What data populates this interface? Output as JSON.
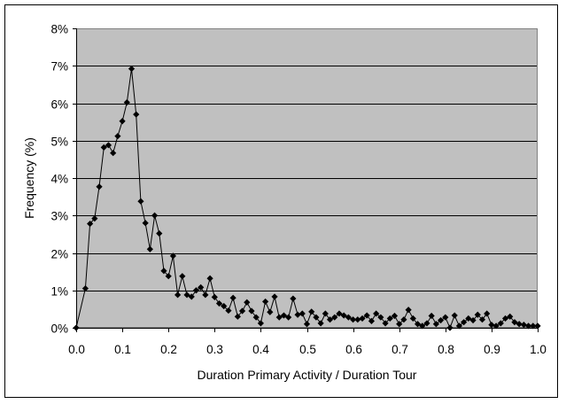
{
  "chart_data": {
    "type": "line",
    "title": "",
    "xlabel": "Duration Primary Activity / Duration Tour",
    "ylabel": "Frequency (%)",
    "xlim": [
      0,
      1
    ],
    "ylim": [
      0,
      8
    ],
    "x_ticks": [
      "0.0",
      "0.1",
      "0.2",
      "0.3",
      "0.4",
      "0.5",
      "0.6",
      "0.7",
      "0.8",
      "0.9",
      "1.0"
    ],
    "y_ticks": [
      "0%",
      "1%",
      "2%",
      "3%",
      "4%",
      "5%",
      "6%",
      "7%",
      "8%"
    ],
    "grid": "horizontal",
    "legend": "none",
    "marker": "diamond",
    "colors": {
      "plot_background": "#c0c0c0",
      "line": "#000000",
      "gridline": "#000000"
    },
    "series": [
      {
        "x": [
          0.0,
          0.02,
          0.03,
          0.04,
          0.05,
          0.06,
          0.07,
          0.08,
          0.09,
          0.1,
          0.11,
          0.12,
          0.13,
          0.14,
          0.15,
          0.16,
          0.17,
          0.18,
          0.19,
          0.2,
          0.21,
          0.22,
          0.23,
          0.24,
          0.25,
          0.26,
          0.27,
          0.28,
          0.29,
          0.3,
          0.31,
          0.32,
          0.33,
          0.34,
          0.35,
          0.36,
          0.37,
          0.38,
          0.39,
          0.4,
          0.41,
          0.42,
          0.43,
          0.44,
          0.45,
          0.46,
          0.47,
          0.48,
          0.49,
          0.5,
          0.51,
          0.52,
          0.53,
          0.54,
          0.55,
          0.56,
          0.57,
          0.58,
          0.59,
          0.6,
          0.61,
          0.62,
          0.63,
          0.64,
          0.65,
          0.66,
          0.67,
          0.68,
          0.69,
          0.7,
          0.71,
          0.72,
          0.73,
          0.74,
          0.75,
          0.76,
          0.77,
          0.78,
          0.79,
          0.8,
          0.81,
          0.82,
          0.83,
          0.84,
          0.85,
          0.86,
          0.87,
          0.88,
          0.89,
          0.9,
          0.91,
          0.92,
          0.93,
          0.94,
          0.95,
          0.96,
          0.97,
          0.98,
          0.99,
          1.0
        ],
        "values": [
          0.0,
          1.05,
          2.78,
          2.92,
          3.77,
          4.82,
          4.88,
          4.67,
          5.12,
          5.52,
          6.02,
          6.92,
          5.7,
          3.38,
          2.8,
          2.1,
          3.0,
          2.52,
          1.52,
          1.38,
          1.92,
          0.88,
          1.38,
          0.88,
          0.83,
          1.0,
          1.08,
          0.88,
          1.32,
          0.82,
          0.65,
          0.58,
          0.46,
          0.8,
          0.3,
          0.45,
          0.68,
          0.45,
          0.28,
          0.12,
          0.7,
          0.42,
          0.83,
          0.28,
          0.33,
          0.28,
          0.78,
          0.35,
          0.38,
          0.1,
          0.43,
          0.28,
          0.12,
          0.38,
          0.22,
          0.28,
          0.38,
          0.33,
          0.28,
          0.22,
          0.22,
          0.25,
          0.33,
          0.18,
          0.38,
          0.28,
          0.12,
          0.25,
          0.32,
          0.1,
          0.22,
          0.48,
          0.25,
          0.1,
          0.05,
          0.12,
          0.32,
          0.1,
          0.2,
          0.28,
          0.0,
          0.33,
          0.05,
          0.15,
          0.25,
          0.2,
          0.35,
          0.22,
          0.38,
          0.08,
          0.05,
          0.12,
          0.25,
          0.3,
          0.15,
          0.1,
          0.08,
          0.05,
          0.05,
          0.05
        ]
      }
    ]
  }
}
